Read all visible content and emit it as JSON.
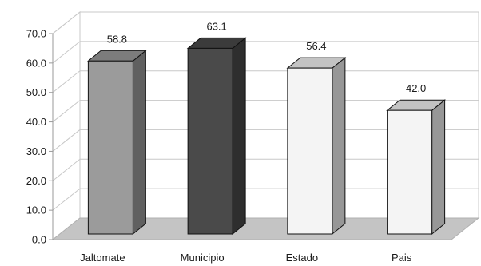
{
  "chart_data": {
    "type": "bar",
    "title": "",
    "xlabel": "",
    "ylabel": "",
    "categories": [
      "Jaltomate",
      "Municipio",
      "Estado",
      "Pais"
    ],
    "values": [
      58.8,
      63.1,
      56.4,
      42.0
    ],
    "value_labels": [
      "58.8",
      "63.1",
      "56.4",
      "42.0"
    ],
    "ylim": [
      0,
      70
    ],
    "yticks": [
      0,
      10,
      20,
      30,
      40,
      50,
      60,
      70
    ],
    "ytick_labels": [
      "0.0",
      "10.0",
      "20.0",
      "30.0",
      "40.0",
      "50.0",
      "60.0",
      "70.0"
    ],
    "grid": true,
    "legend": "none",
    "style": "3d-column",
    "colors": {
      "bars": [
        "#9b9b9b",
        "#4a4a4a",
        "#f4f4f4",
        "#f4f4f4"
      ],
      "floor": "#c4c4c4",
      "grid": "#c8c8c8",
      "axis": "#9a9a9a"
    }
  }
}
